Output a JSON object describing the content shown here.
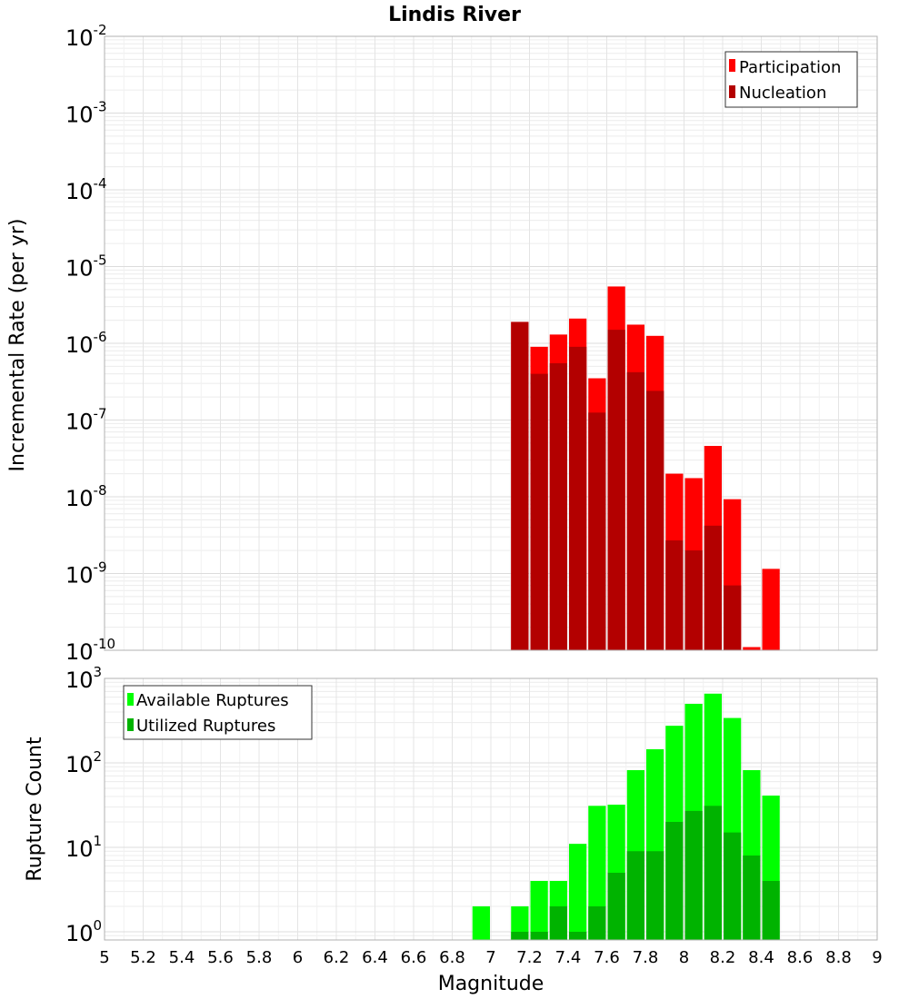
{
  "chart_data": [
    {
      "type": "bar",
      "title": "Lindis River",
      "xlabel": "",
      "ylabel": "Incremental Rate (per yr)",
      "yscale": "log",
      "ylim": [
        1e-10,
        0.01
      ],
      "xlim": [
        5,
        9
      ],
      "bin_width": 0.1,
      "grid": true,
      "legend_position": "top-right",
      "x": [
        7.15,
        7.25,
        7.35,
        7.45,
        7.55,
        7.65,
        7.75,
        7.85,
        7.95,
        8.05,
        8.15,
        8.25,
        8.35,
        8.45
      ],
      "series": [
        {
          "name": "Participation",
          "color": "#ff0000",
          "values": [
            1.9e-06,
            9e-07,
            1.3e-06,
            2.1e-06,
            3.5e-07,
            5.5e-06,
            1.75e-06,
            1.25e-06,
            2e-08,
            1.75e-08,
            4.6e-08,
            9.3e-09,
            1.1e-10,
            1.15e-09
          ]
        },
        {
          "name": "Nucleation",
          "color": "#b30000",
          "values": [
            1.9e-06,
            4e-07,
            5.5e-07,
            9e-07,
            1.25e-07,
            1.5e-06,
            4.2e-07,
            2.4e-07,
            2.7e-09,
            2e-09,
            4.2e-09,
            7e-10,
            null,
            null
          ]
        }
      ],
      "yticks": [
        {
          "base": "10",
          "exp": "-10",
          "value": 1e-10
        },
        {
          "base": "10",
          "exp": "-9",
          "value": 1e-09
        },
        {
          "base": "10",
          "exp": "-8",
          "value": 1e-08
        },
        {
          "base": "10",
          "exp": "-7",
          "value": 1e-07
        },
        {
          "base": "10",
          "exp": "-6",
          "value": 1e-06
        },
        {
          "base": "10",
          "exp": "-5",
          "value": 1e-05
        },
        {
          "base": "10",
          "exp": "-4",
          "value": 0.0001
        },
        {
          "base": "10",
          "exp": "-3",
          "value": 0.001
        },
        {
          "base": "10",
          "exp": "-2",
          "value": 0.01
        }
      ]
    },
    {
      "type": "bar",
      "title": "",
      "xlabel": "Magnitude",
      "ylabel": "Rupture Count",
      "yscale": "log",
      "ylim": [
        0.8,
        1000
      ],
      "xlim": [
        5,
        9
      ],
      "bin_width": 0.1,
      "grid": true,
      "legend_position": "top-left",
      "x": [
        6.95,
        7.15,
        7.25,
        7.35,
        7.45,
        7.55,
        7.65,
        7.75,
        7.85,
        7.95,
        8.05,
        8.15,
        8.25,
        8.35,
        8.45
      ],
      "series": [
        {
          "name": "Available Ruptures",
          "color": "#00ff00",
          "values": [
            2,
            2,
            4,
            4,
            11,
            31,
            32,
            82,
            145,
            275,
            500,
            660,
            340,
            82,
            41
          ]
        },
        {
          "name": "Utilized Ruptures",
          "color": "#00b300",
          "values": [
            null,
            1,
            1,
            2,
            1,
            2,
            5,
            9,
            9,
            20,
            27,
            31,
            15,
            8,
            4
          ]
        }
      ],
      "yticks": [
        {
          "base": "10",
          "exp": "0",
          "value": 1
        },
        {
          "base": "10",
          "exp": "1",
          "value": 10
        },
        {
          "base": "10",
          "exp": "2",
          "value": 100
        },
        {
          "base": "10",
          "exp": "3",
          "value": 1000
        }
      ],
      "xticks": [
        "5",
        "5.2",
        "5.4",
        "5.6",
        "5.8",
        "6",
        "6.2",
        "6.4",
        "6.6",
        "6.8",
        "7",
        "7.2",
        "7.4",
        "7.6",
        "7.8",
        "8",
        "8.2",
        "8.4",
        "8.6",
        "8.8",
        "9"
      ]
    }
  ]
}
